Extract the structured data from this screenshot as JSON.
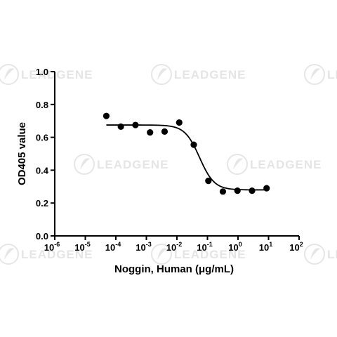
{
  "watermark": {
    "brand": "LEADGENE",
    "icon": "leaf-swirl-icon"
  },
  "chart_data": {
    "type": "scatter",
    "title": "",
    "xlabel": "Noggin, Human (μg/mL)",
    "ylabel": "OD405 value",
    "xscale": "log",
    "xlim": [
      1e-06,
      100
    ],
    "ylim": [
      0.0,
      1.0
    ],
    "grid": false,
    "legend": "none",
    "x_ticks": [
      {
        "base": "10",
        "exp": "-6"
      },
      {
        "base": "10",
        "exp": "-5"
      },
      {
        "base": "10",
        "exp": "-4"
      },
      {
        "base": "10",
        "exp": "-3"
      },
      {
        "base": "10",
        "exp": "-2"
      },
      {
        "base": "10",
        "exp": "-1"
      },
      {
        "base": "10",
        "exp": "0"
      },
      {
        "base": "10",
        "exp": "1"
      },
      {
        "base": "10",
        "exp": "2"
      }
    ],
    "y_ticks": [
      "0.0",
      "0.2",
      "0.4",
      "0.6",
      "0.8",
      "1.0"
    ],
    "y_tick_values": [
      0.0,
      0.2,
      0.4,
      0.6,
      0.8,
      1.0
    ],
    "points": [
      {
        "x": 4.88e-05,
        "y": 0.73
      },
      {
        "x": 0.000146,
        "y": 0.665
      },
      {
        "x": 0.000439,
        "y": 0.675
      },
      {
        "x": 0.00132,
        "y": 0.63
      },
      {
        "x": 0.00395,
        "y": 0.635
      },
      {
        "x": 0.0119,
        "y": 0.69
      },
      {
        "x": 0.0356,
        "y": 0.555
      },
      {
        "x": 0.107,
        "y": 0.335
      },
      {
        "x": 0.32,
        "y": 0.27
      },
      {
        "x": 0.96,
        "y": 0.275
      },
      {
        "x": 2.88,
        "y": 0.275
      },
      {
        "x": 8.64,
        "y": 0.29
      }
    ],
    "fit_curve": {
      "model": "4PL",
      "top": 0.675,
      "bottom": 0.28,
      "ec50": 0.055,
      "hill": 1.8,
      "x_range": [
        4.88e-05,
        8.64
      ]
    },
    "colors": {
      "points": "#000000",
      "curve": "#000000",
      "axes": "#000000"
    }
  }
}
